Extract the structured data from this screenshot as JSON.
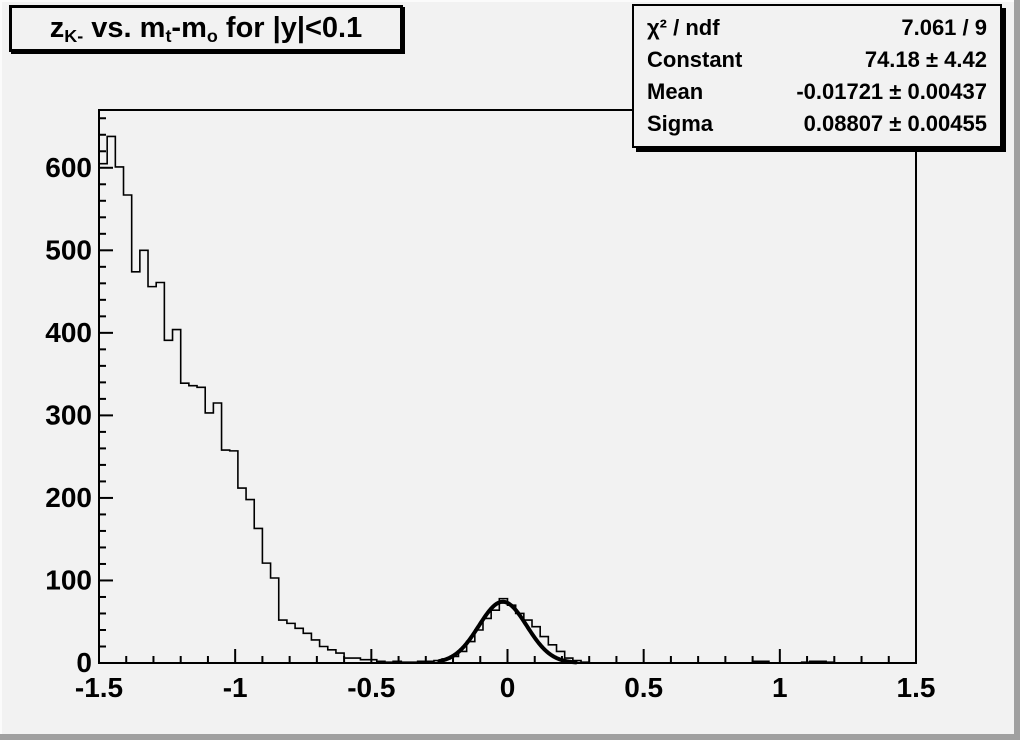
{
  "window": {
    "canvas_bg": "#f2f2f2",
    "bevel_dark": "#a0a0a0",
    "bevel_light": "#fbfbfb",
    "line_color": "#000000"
  },
  "title_box": {
    "parts": [
      {
        "text": "z"
      },
      {
        "sub": "K-"
      },
      {
        "text": " vs. m"
      },
      {
        "sub": "t"
      },
      {
        "text": "-m"
      },
      {
        "sub": "o"
      },
      {
        "text": " for |y|<0.1"
      }
    ],
    "plain": "zK- vs. mt-mo for |y|<0.1"
  },
  "stats_box": {
    "rows": [
      {
        "label": "χ² / ndf",
        "value": "7.061 / 9"
      },
      {
        "label": "Constant",
        "value": "74.18 ± 4.42"
      },
      {
        "label": "Mean",
        "value": "-0.01721 ± 0.00437"
      },
      {
        "label": "Sigma",
        "value": "0.08807 ± 0.00455"
      }
    ]
  },
  "chart_data": {
    "type": "bar",
    "subtype": "root-histogram-with-gaussian-fit",
    "title": "zK- vs. mt-mo for |y|<0.1",
    "xlabel": "",
    "ylabel": "",
    "grid": false,
    "legend": false,
    "x": {
      "min": -1.5,
      "max": 1.5,
      "bins": 100,
      "bin_width": 0.03,
      "major_tick_step": 0.5,
      "minor_tick_step": 0.1,
      "tick_labels": [
        "-1.5",
        "-1",
        "-0.5",
        "0",
        "0.5",
        "1",
        "1.5"
      ]
    },
    "y": {
      "min": 0,
      "max": 670,
      "major_tick_step": 100,
      "minor_tick_step": 20,
      "tick_labels": [
        "0",
        "100",
        "200",
        "300",
        "400",
        "500",
        "600"
      ]
    },
    "bin_values": [
      605,
      638,
      601,
      567,
      474,
      500,
      456,
      461,
      391,
      404,
      339,
      336,
      334,
      303,
      315,
      258,
      257,
      212,
      198,
      163,
      121,
      103,
      52,
      48,
      42,
      36,
      28,
      20,
      16,
      12,
      6,
      6,
      4,
      4,
      2,
      1,
      2,
      1,
      1,
      2,
      2,
      3,
      5,
      8,
      14,
      26,
      40,
      54,
      64,
      78,
      70,
      60,
      52,
      44,
      32,
      22,
      14,
      6,
      3,
      1,
      0,
      0,
      0,
      0,
      0,
      0,
      0,
      0,
      0,
      0,
      0,
      0,
      0,
      0,
      0,
      0,
      0,
      0,
      0,
      0,
      2,
      2,
      0,
      0,
      0,
      0,
      1,
      2,
      2,
      1,
      0,
      0,
      0,
      0,
      0,
      0,
      0,
      0,
      0,
      0
    ],
    "fit": {
      "shape": "gaussian",
      "constant": 74.18,
      "mean": -0.01721,
      "sigma": 0.08807,
      "draw_range": [
        -0.25,
        0.25
      ]
    },
    "histogram_color": "#000000",
    "fit_color": "#000000"
  }
}
